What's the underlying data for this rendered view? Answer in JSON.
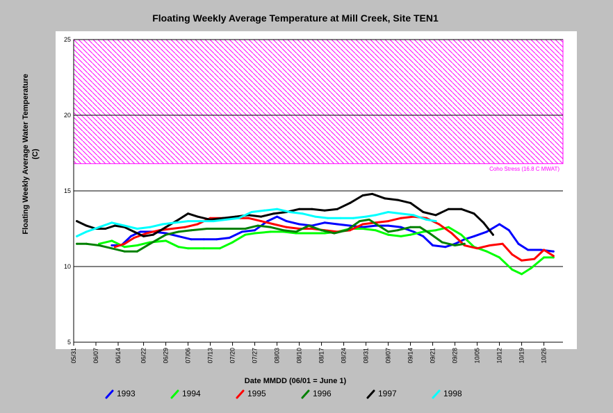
{
  "chart_data": {
    "type": "line",
    "title": "Floating Weekly Average Temperature at Mill Creek, Site TEN1",
    "xlabel": "Date MMDD (06/01 = June 1)",
    "ylabel_lines": [
      "Floating Weekly Average Water Temperature",
      "(C)"
    ],
    "x_tick_labels": [
      "05/31",
      "06/07",
      "06/14",
      "06/22",
      "06/29",
      "07/06",
      "07/13",
      "07/20",
      "07/27",
      "08/03",
      "08/10",
      "08/17",
      "08/24",
      "08/31",
      "09/07",
      "09/14",
      "09/21",
      "09/28",
      "10/05",
      "10/12",
      "10/19",
      "10/26"
    ],
    "y_ticks": [
      5,
      10,
      15,
      20,
      25
    ],
    "ylim": [
      5,
      25
    ],
    "xlim": [
      "05/31",
      "11/01"
    ],
    "grid": "horizontal",
    "band": {
      "from": 16.8,
      "to": 25,
      "label": "Coho Stress (16.8 C MWAT)",
      "color": "#ff00ff"
    },
    "series": [
      {
        "name": "1993",
        "color": "#0000ff",
        "points": [
          [
            "06/12",
            11.4
          ],
          [
            "06/15",
            11.4
          ],
          [
            "06/18",
            12.0
          ],
          [
            "06/21",
            12.3
          ],
          [
            "06/25",
            12.3
          ],
          [
            "06/29",
            12.2
          ],
          [
            "07/03",
            12.0
          ],
          [
            "07/07",
            11.8
          ],
          [
            "07/11",
            11.8
          ],
          [
            "07/15",
            11.8
          ],
          [
            "07/19",
            11.9
          ],
          [
            "07/23",
            12.3
          ],
          [
            "07/27",
            12.4
          ],
          [
            "07/31",
            13.0
          ],
          [
            "08/03",
            13.3
          ],
          [
            "08/06",
            13.0
          ],
          [
            "08/10",
            12.8
          ],
          [
            "08/14",
            12.7
          ],
          [
            "08/18",
            12.9
          ],
          [
            "08/22",
            12.8
          ],
          [
            "08/26",
            12.7
          ],
          [
            "08/30",
            12.6
          ],
          [
            "09/03",
            12.7
          ],
          [
            "09/07",
            12.7
          ],
          [
            "09/11",
            12.6
          ],
          [
            "09/15",
            12.3
          ],
          [
            "09/18",
            12.0
          ],
          [
            "09/21",
            11.4
          ],
          [
            "09/25",
            11.3
          ],
          [
            "09/28",
            11.5
          ],
          [
            "10/01",
            11.8
          ],
          [
            "10/04",
            12.0
          ],
          [
            "10/08",
            12.3
          ],
          [
            "10/12",
            12.8
          ],
          [
            "10/15",
            12.4
          ],
          [
            "10/18",
            11.5
          ],
          [
            "10/21",
            11.1
          ],
          [
            "10/25",
            11.1
          ],
          [
            "10/29",
            11.0
          ]
        ]
      },
      {
        "name": "1994",
        "color": "#00ff00",
        "points": [
          [
            "06/08",
            11.5
          ],
          [
            "06/12",
            11.7
          ],
          [
            "06/16",
            11.3
          ],
          [
            "06/20",
            11.4
          ],
          [
            "06/24",
            11.6
          ],
          [
            "06/29",
            11.7
          ],
          [
            "07/03",
            11.3
          ],
          [
            "07/06",
            11.2
          ],
          [
            "07/11",
            11.2
          ],
          [
            "07/16",
            11.2
          ],
          [
            "07/20",
            11.6
          ],
          [
            "07/24",
            12.1
          ],
          [
            "07/27",
            12.2
          ],
          [
            "08/01",
            12.3
          ],
          [
            "08/05",
            12.3
          ],
          [
            "08/09",
            12.2
          ],
          [
            "08/14",
            12.2
          ],
          [
            "08/18",
            12.2
          ],
          [
            "08/22",
            12.3
          ],
          [
            "08/26",
            12.5
          ],
          [
            "08/30",
            12.5
          ],
          [
            "09/03",
            12.4
          ],
          [
            "09/07",
            12.1
          ],
          [
            "09/11",
            12.0
          ],
          [
            "09/14",
            12.1
          ],
          [
            "09/18",
            12.3
          ],
          [
            "09/22",
            12.4
          ],
          [
            "09/26",
            12.6
          ],
          [
            "09/30",
            12.1
          ],
          [
            "10/04",
            11.3
          ],
          [
            "10/08",
            11.0
          ],
          [
            "10/12",
            10.6
          ],
          [
            "10/16",
            9.8
          ],
          [
            "10/19",
            9.5
          ],
          [
            "10/22",
            9.9
          ],
          [
            "10/26",
            10.6
          ],
          [
            "10/29",
            10.6
          ]
        ]
      },
      {
        "name": "1995",
        "color": "#ff0000",
        "points": [
          [
            "06/13",
            11.3
          ],
          [
            "06/16",
            11.5
          ],
          [
            "06/19",
            11.9
          ],
          [
            "06/23",
            12.2
          ],
          [
            "06/27",
            12.4
          ],
          [
            "07/01",
            12.5
          ],
          [
            "07/05",
            12.6
          ],
          [
            "07/09",
            12.8
          ],
          [
            "07/13",
            13.2
          ],
          [
            "07/17",
            13.2
          ],
          [
            "07/21",
            13.2
          ],
          [
            "07/25",
            13.2
          ],
          [
            "07/29",
            13.0
          ],
          [
            "08/02",
            12.8
          ],
          [
            "08/06",
            12.6
          ],
          [
            "08/10",
            12.5
          ],
          [
            "08/14",
            12.5
          ],
          [
            "08/18",
            12.4
          ],
          [
            "08/22",
            12.3
          ],
          [
            "08/26",
            12.4
          ],
          [
            "08/30",
            12.8
          ],
          [
            "09/03",
            12.9
          ],
          [
            "09/07",
            13.0
          ],
          [
            "09/11",
            13.2
          ],
          [
            "09/15",
            13.3
          ],
          [
            "09/19",
            13.2
          ],
          [
            "09/23",
            12.8
          ],
          [
            "09/27",
            12.2
          ],
          [
            "10/01",
            11.4
          ],
          [
            "10/05",
            11.2
          ],
          [
            "10/09",
            11.4
          ],
          [
            "10/13",
            11.5
          ],
          [
            "10/16",
            10.8
          ],
          [
            "10/19",
            10.4
          ],
          [
            "10/23",
            10.5
          ],
          [
            "10/26",
            11.1
          ],
          [
            "10/29",
            10.7
          ]
        ]
      },
      {
        "name": "1996",
        "color": "#008000",
        "points": [
          [
            "06/01",
            11.5
          ],
          [
            "06/04",
            11.5
          ],
          [
            "06/08",
            11.4
          ],
          [
            "06/12",
            11.2
          ],
          [
            "06/16",
            11.0
          ],
          [
            "06/20",
            11.0
          ],
          [
            "06/24",
            11.5
          ],
          [
            "06/29",
            12.1
          ],
          [
            "07/03",
            12.3
          ],
          [
            "07/07",
            12.4
          ],
          [
            "07/12",
            12.5
          ],
          [
            "07/16",
            12.5
          ],
          [
            "07/20",
            12.5
          ],
          [
            "07/24",
            12.5
          ],
          [
            "07/28",
            12.7
          ],
          [
            "08/01",
            12.6
          ],
          [
            "08/05",
            12.4
          ],
          [
            "08/09",
            12.3
          ],
          [
            "08/13",
            12.7
          ],
          [
            "08/17",
            12.4
          ],
          [
            "08/21",
            12.2
          ],
          [
            "08/25",
            12.4
          ],
          [
            "08/29",
            13.0
          ],
          [
            "09/01",
            13.1
          ],
          [
            "09/04",
            12.7
          ],
          [
            "09/07",
            12.3
          ],
          [
            "09/10",
            12.4
          ],
          [
            "09/14",
            12.6
          ],
          [
            "09/17",
            12.6
          ],
          [
            "09/20",
            12.2
          ],
          [
            "09/24",
            11.6
          ],
          [
            "09/28",
            11.4
          ],
          [
            "10/01",
            11.5
          ]
        ]
      },
      {
        "name": "1997",
        "color": "#000000",
        "points": [
          [
            "06/01",
            13.0
          ],
          [
            "06/04",
            12.7
          ],
          [
            "06/07",
            12.5
          ],
          [
            "06/10",
            12.5
          ],
          [
            "06/13",
            12.7
          ],
          [
            "06/16",
            12.6
          ],
          [
            "06/19",
            12.3
          ],
          [
            "06/22",
            12.0
          ],
          [
            "06/25",
            12.1
          ],
          [
            "06/29",
            12.6
          ],
          [
            "07/03",
            13.1
          ],
          [
            "07/06",
            13.5
          ],
          [
            "07/09",
            13.3
          ],
          [
            "07/13",
            13.1
          ],
          [
            "07/17",
            13.2
          ],
          [
            "07/21",
            13.3
          ],
          [
            "07/25",
            13.4
          ],
          [
            "07/29",
            13.3
          ],
          [
            "08/02",
            13.5
          ],
          [
            "08/06",
            13.6
          ],
          [
            "08/10",
            13.8
          ],
          [
            "08/14",
            13.8
          ],
          [
            "08/18",
            13.7
          ],
          [
            "08/22",
            13.8
          ],
          [
            "08/26",
            14.2
          ],
          [
            "08/30",
            14.7
          ],
          [
            "09/02",
            14.8
          ],
          [
            "09/06",
            14.5
          ],
          [
            "09/10",
            14.4
          ],
          [
            "09/14",
            14.2
          ],
          [
            "09/18",
            13.6
          ],
          [
            "09/22",
            13.4
          ],
          [
            "09/26",
            13.8
          ],
          [
            "09/30",
            13.8
          ],
          [
            "10/04",
            13.5
          ],
          [
            "10/07",
            12.9
          ],
          [
            "10/10",
            12.1
          ]
        ]
      },
      {
        "name": "1998",
        "color": "#00ffff",
        "points": [
          [
            "06/01",
            12.0
          ],
          [
            "06/04",
            12.3
          ],
          [
            "06/08",
            12.6
          ],
          [
            "06/12",
            12.9
          ],
          [
            "06/16",
            12.7
          ],
          [
            "06/20",
            12.5
          ],
          [
            "06/24",
            12.6
          ],
          [
            "06/28",
            12.8
          ],
          [
            "07/02",
            12.9
          ],
          [
            "07/06",
            13.0
          ],
          [
            "07/10",
            13.0
          ],
          [
            "07/14",
            13.0
          ],
          [
            "07/18",
            13.1
          ],
          [
            "07/22",
            13.2
          ],
          [
            "07/26",
            13.6
          ],
          [
            "07/30",
            13.7
          ],
          [
            "08/03",
            13.8
          ],
          [
            "08/07",
            13.6
          ],
          [
            "08/11",
            13.5
          ],
          [
            "08/15",
            13.3
          ],
          [
            "08/19",
            13.2
          ],
          [
            "08/23",
            13.2
          ],
          [
            "08/27",
            13.2
          ],
          [
            "08/31",
            13.3
          ],
          [
            "09/03",
            13.4
          ],
          [
            "09/07",
            13.6
          ],
          [
            "09/11",
            13.5
          ],
          [
            "09/15",
            13.4
          ],
          [
            "09/19",
            13.1
          ],
          [
            "09/22",
            13.0
          ]
        ]
      }
    ]
  }
}
